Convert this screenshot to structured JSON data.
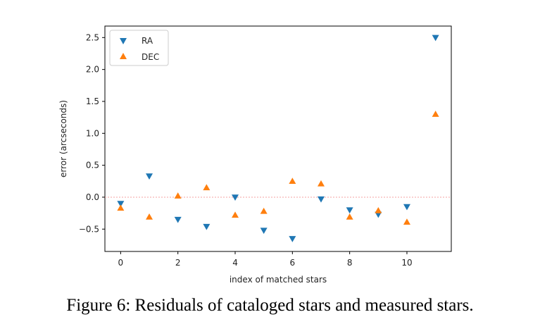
{
  "caption": "Figure 6: Residuals of cataloged stars and measured stars.",
  "chart_data": {
    "type": "scatter",
    "title": "",
    "xlabel": "index of matched stars",
    "ylabel": "error (arcseconds)",
    "xlim": [
      -0.55,
      11.55
    ],
    "ylim": [
      -0.85,
      2.68
    ],
    "xticks": [
      0,
      2,
      4,
      6,
      8,
      10
    ],
    "yticks": [
      -0.5,
      0.0,
      0.5,
      1.0,
      1.5,
      2.0,
      2.5
    ],
    "ytick_labels": [
      "−0.5",
      "0.0",
      "0.5",
      "1.0",
      "1.5",
      "2.0",
      "2.5"
    ],
    "reference_line": {
      "y": 0.0,
      "style": "dotted",
      "color": "#f4a0a0"
    },
    "grid": false,
    "legend": {
      "placement": "top-left"
    },
    "series": [
      {
        "name": "RA",
        "marker": "triangle-down",
        "color": "#1f77b4",
        "x": [
          0,
          1,
          2,
          3,
          4,
          5,
          6,
          7,
          8,
          9,
          10,
          11
        ],
        "y": [
          -0.1,
          0.33,
          -0.35,
          -0.46,
          0.0,
          -0.52,
          -0.65,
          -0.03,
          -0.2,
          -0.27,
          -0.15,
          2.5
        ]
      },
      {
        "name": "DEC",
        "marker": "triangle-up",
        "color": "#ff7f0e",
        "x": [
          0,
          1,
          2,
          3,
          4,
          5,
          6,
          7,
          8,
          9,
          10,
          11
        ],
        "y": [
          -0.17,
          -0.31,
          0.02,
          0.15,
          -0.28,
          -0.22,
          0.25,
          0.21,
          -0.31,
          -0.21,
          -0.39,
          1.3
        ]
      }
    ]
  }
}
